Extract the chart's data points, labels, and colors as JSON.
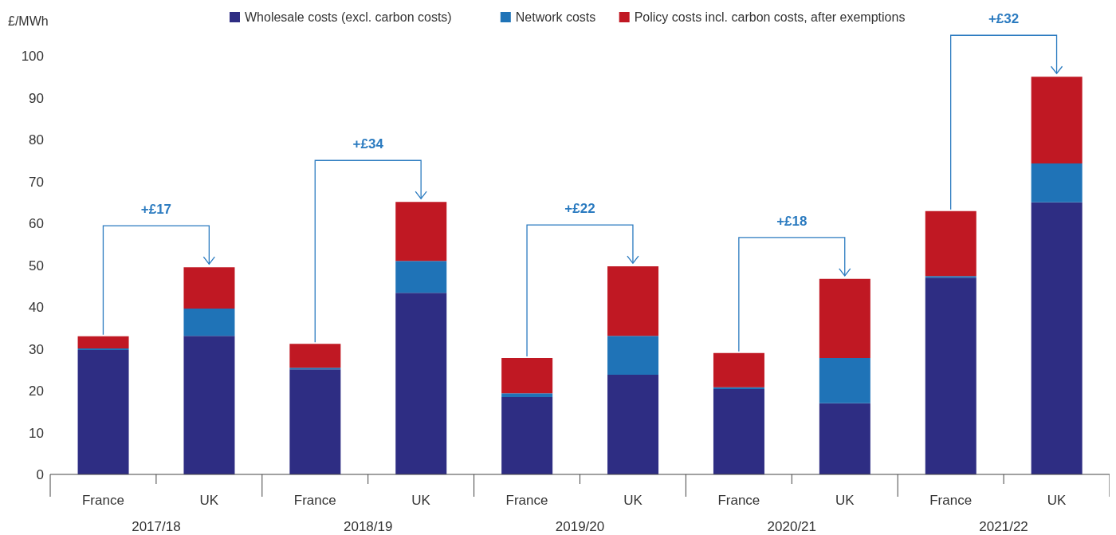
{
  "chart_data": {
    "type": "bar",
    "stacked": true,
    "ylabel": "£/MWh",
    "categories": [
      "France",
      "UK",
      "France",
      "UK",
      "France",
      "UK",
      "France",
      "UK",
      "France",
      "UK"
    ],
    "series": [
      {
        "name": "Wholesale costs (excl. carbon costs)",
        "color": "#2e2d83",
        "values": [
          29.7,
          33.1,
          25.1,
          43.4,
          18.5,
          23.8,
          20.4,
          17.0,
          47.0,
          65.0
        ]
      },
      {
        "name": "Network costs",
        "color": "#1f73b7",
        "values": [
          0.4,
          6.5,
          0.4,
          7.6,
          0.9,
          9.3,
          0.4,
          10.8,
          0.4,
          9.3
        ]
      },
      {
        "name": "Policy costs incl. carbon costs, after exemptions",
        "color": "#c01823",
        "values": [
          2.9,
          9.9,
          5.7,
          14.1,
          8.4,
          16.6,
          8.2,
          18.9,
          15.5,
          20.7
        ]
      }
    ],
    "ylim": [
      0,
      100
    ],
    "yticks": [
      0,
      10,
      20,
      30,
      40,
      50,
      60,
      70,
      80,
      90,
      100
    ],
    "grid": false,
    "legend": "top",
    "annotations": [
      "2017/18",
      "2018/19",
      "2019/20",
      "2020/21",
      "2021/22",
      "+£17",
      "+£34",
      "+£22",
      "+£18",
      "+£32"
    ]
  }
}
